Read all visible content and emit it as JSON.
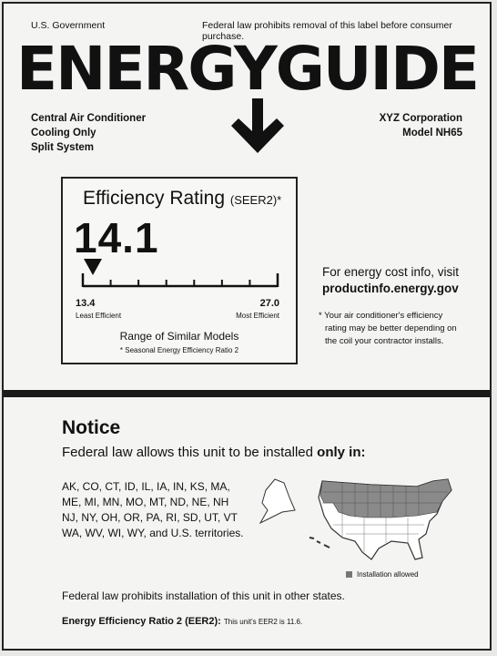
{
  "header": {
    "government": "U.S. Government",
    "federal_notice": "Federal law prohibits removal of this label before consumer purchase.",
    "brand": "ENERGYGUIDE"
  },
  "product": {
    "type": "Central Air Conditioner",
    "mode": "Cooling Only",
    "system": "Split System",
    "manufacturer": "XYZ Corporation",
    "model": "Model NH65"
  },
  "rating": {
    "title": "Efficiency Rating",
    "title_suffix": "(SEER2)*",
    "value": "14.1",
    "value_num": 14.1,
    "scale_min": 13.4,
    "scale_max": 27.0,
    "scale_min_label": "13.4",
    "scale_max_label": "27.0",
    "least_label": "Least Efficient",
    "most_label": "Most Efficient",
    "range_label": "Range of Similar Models",
    "footnote": "* Seasonal Energy Efficiency Ratio 2"
  },
  "cost_info": {
    "line1": "For energy cost info, visit",
    "url": "productinfo.energy.gov",
    "note_line1": "* Your air conditioner's efficiency",
    "note_line2": "rating may be better depending on",
    "note_line3": "the coil your contractor installs."
  },
  "notice": {
    "title": "Notice",
    "line_prefix": "Federal law allows this unit to be installed ",
    "line_bold": "only in:",
    "states_line1": "AK, CO, CT, ID, IL, IA, IN, KS, MA,",
    "states_line2": "ME, MI, MN, MO, MT, ND, NE, NH",
    "states_line3": "NJ, NY, OH, OR, PA, RI, SD, UT, VT",
    "states_line4": "WA, WV, WI, WY, and U.S. territories.",
    "legend": "Installation allowed",
    "prohibit": "Federal law prohibits installation of this unit in other states."
  },
  "eer": {
    "label": "Energy Efficiency Ratio 2 (EER2):",
    "text": "This unit's EER2 is 11.6."
  },
  "colors": {
    "ink": "#111111",
    "allowed_region": "#8a8a8a",
    "map_fill": "#ffffff"
  }
}
